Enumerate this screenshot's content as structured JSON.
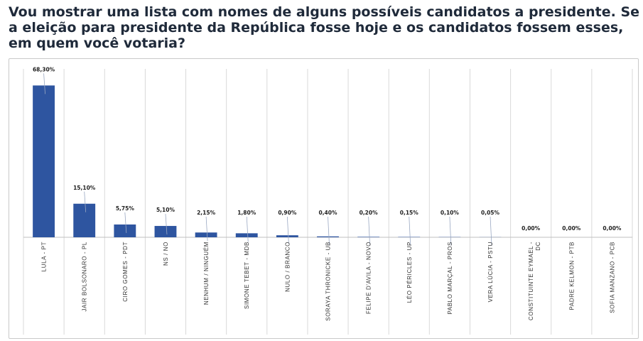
{
  "title": "Vou mostrar uma lista com nomes de alguns possíveis candidatos a presidente. Se a eleição para presidente da República fosse hoje e os candidatos fossem esses, em quem você votaria?",
  "colors": {
    "bar": "#2e55a0",
    "grid": "#d9d9d9",
    "axis": "#bfbfbf"
  },
  "chart_data": {
    "type": "bar",
    "categories": [
      "LULA - PT",
      "JAIR BOLSONARO - PL",
      "CIRO GOMES - PDT",
      "NS / NO",
      "NENHUM / NINGUÉM",
      "SIMONE TEBET - MDB",
      "NULO / BRANCO",
      "SORAYA THRONICKE - UB",
      "FELIPE D'AVILA - NOVO",
      "LÉO PÉRICLES - UP",
      "PABLO MARÇAL - PROS",
      "VERA LÚCIA - PSTU",
      [
        "CONSTITUINTE EYMAEL -",
        "DC"
      ],
      "PADRE KELMON - PTB",
      "SOFIA MANZANO - PCB"
    ],
    "values": [
      68.3,
      15.1,
      5.75,
      5.1,
      2.15,
      1.8,
      0.9,
      0.4,
      0.2,
      0.15,
      0.1,
      0.05,
      0,
      0,
      0
    ],
    "data_labels": [
      "68,30%",
      "15,10%",
      "5,75%",
      "5,10%",
      "2,15%",
      "1,80%",
      "0,90%",
      "0,40%",
      "0,20%",
      "0,15%",
      "0,10%",
      "0,05%",
      "0,00%",
      "0,00%",
      "0,00%"
    ],
    "ylim": [
      0,
      70
    ],
    "grid": true,
    "legend": "none"
  }
}
